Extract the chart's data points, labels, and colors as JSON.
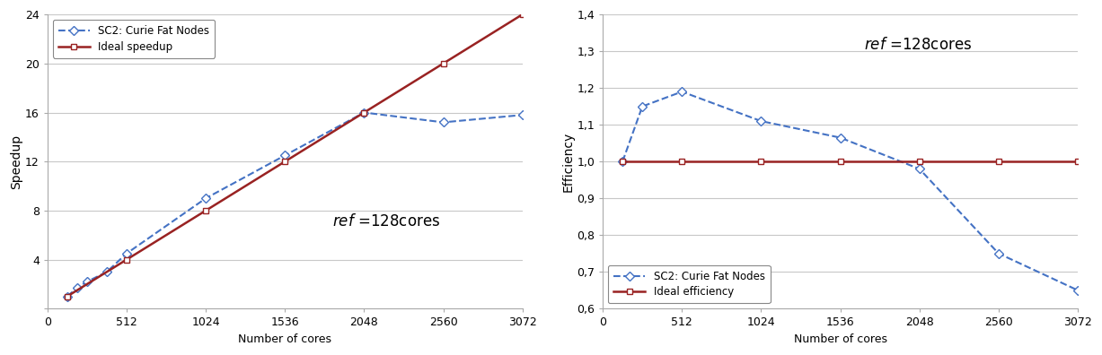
{
  "speedup": {
    "sc2_cores": [
      128,
      192,
      256,
      384,
      512,
      1024,
      1536,
      2048,
      2560,
      3072
    ],
    "sc2_values": [
      1.0,
      1.7,
      2.2,
      3.0,
      4.5,
      9.0,
      12.5,
      16.0,
      15.2,
      15.8
    ],
    "ideal_cores": [
      128,
      512,
      1024,
      1536,
      2048,
      2560,
      3072
    ],
    "ideal_values": [
      1.0,
      4.0,
      8.0,
      12.0,
      16.0,
      20.0,
      24.0
    ],
    "ylabel": "Speedup",
    "xlabel": "Number of cores",
    "annotation": "ref =128cores",
    "ylim": [
      0,
      24
    ],
    "yticks": [
      0,
      4,
      8,
      12,
      16,
      20,
      24
    ],
    "xticks": [
      0,
      512,
      1024,
      1536,
      2048,
      2560,
      3072
    ],
    "legend_loc": "upper left"
  },
  "efficiency": {
    "sc2_cores": [
      128,
      256,
      512,
      1024,
      1536,
      2048,
      2560,
      3072
    ],
    "sc2_values": [
      1.0,
      1.15,
      1.19,
      1.11,
      1.065,
      0.98,
      0.75,
      0.65
    ],
    "ideal_cores": [
      128,
      512,
      1024,
      1536,
      2048,
      2560,
      3072
    ],
    "ideal_values": [
      1.0,
      1.0,
      1.0,
      1.0,
      1.0,
      1.0,
      1.0
    ],
    "ylabel": "Efficiency",
    "xlabel": "Number of cores",
    "annotation": "ref =128cores",
    "ylim": [
      0.6,
      1.4
    ],
    "yticks": [
      0.6,
      0.7,
      0.8,
      0.9,
      1.0,
      1.1,
      1.2,
      1.3,
      1.4
    ],
    "xticks": [
      0,
      512,
      1024,
      1536,
      2048,
      2560,
      3072
    ],
    "legend_loc": "lower left"
  },
  "line_blue_color": "#4472C4",
  "line_red_color": "#992222",
  "bg_color": "#FFFFFF",
  "grid_color": "#C8C8C8",
  "figsize": [
    12.27,
    3.96
  ],
  "dpi": 100
}
